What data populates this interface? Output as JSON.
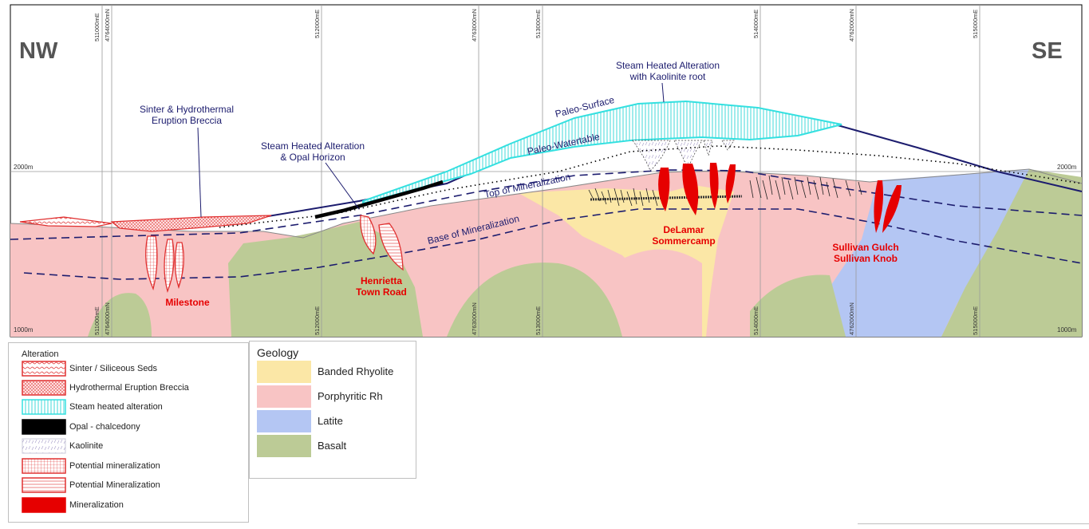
{
  "directions": {
    "left": "NW",
    "right": "SE"
  },
  "elevations": {
    "upper_left": "2000m",
    "upper_right": "2000m",
    "lower_left": "1000m",
    "lower_right": "1000m"
  },
  "grid_labels": {
    "g1": "511000mE",
    "g2": "4764000mN",
    "g3": "512000mE",
    "g4": "4763000mN",
    "g5": "513000mE",
    "g6": "514000mE",
    "g7": "4762000mN",
    "g8": "515000mE"
  },
  "annotations": {
    "sinter_breccia": [
      "Sinter & Hydrothermal",
      "Eruption Breccia"
    ],
    "steam_opal": [
      "Steam Heated Alteration",
      "& Opal Horizon"
    ],
    "steam_kaolinite": [
      "Steam Heated Alteration",
      "with Kaolinite root"
    ],
    "paleo_surface": "Paleo-Surface",
    "paleo_watertable": "Paleo-Watertable",
    "top_mineralization": "Top of Mineralization",
    "base_mineralization": "Base of Mineralization"
  },
  "deposits": {
    "milestone": "Milestone",
    "henrietta": [
      "Henrietta",
      "Town Road"
    ],
    "delamar": [
      "DeLamar",
      "Sommercamp"
    ],
    "sullivan": [
      "Sullivan Gulch",
      "Sullivan Knob"
    ]
  },
  "legend_alteration": {
    "title": "Alteration",
    "items": [
      {
        "label": "Sinter / Siliceous Seds",
        "pattern": "sinter"
      },
      {
        "label": "Hydrothermal Eruption Breccia",
        "pattern": "breccia"
      },
      {
        "label": "Steam heated alteration",
        "pattern": "steam"
      },
      {
        "label": "Opal - chalcedony",
        "pattern": "opal"
      },
      {
        "label": "Kaolinite",
        "pattern": "kaolinite"
      },
      {
        "label": "Potential mineralization",
        "pattern": "grid"
      },
      {
        "label": "Potential Mineralization",
        "pattern": "hlines"
      },
      {
        "label": "Mineralization",
        "pattern": "solid"
      }
    ]
  },
  "legend_geology": {
    "title": "Geology",
    "items": [
      {
        "label": "Banded Rhyolite",
        "color": "#fbe7a6"
      },
      {
        "label": "Porphyritic Rh",
        "color": "#f8c4c4"
      },
      {
        "label": "Latite",
        "color": "#b4c6f3"
      },
      {
        "label": "Basalt",
        "color": "#bccb96"
      }
    ]
  },
  "colors": {
    "banded_rhyolite": "#fbe7a6",
    "porphyritic": "#f8c4c4",
    "latite": "#b4c6f3",
    "basalt": "#bccb96",
    "mineralization": "#e60000",
    "steam": "#34e0e0",
    "annotation": "#1c1c6e",
    "direction": "#555555"
  }
}
